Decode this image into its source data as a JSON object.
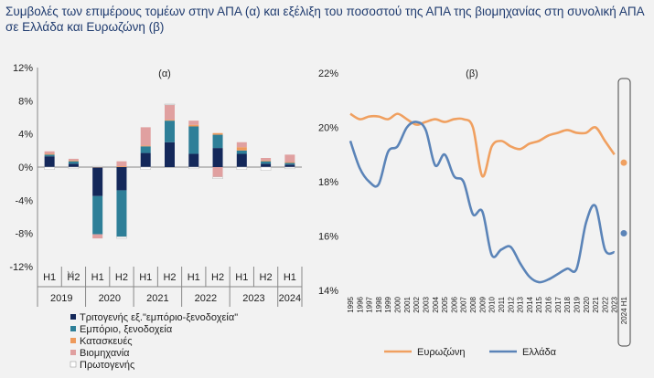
{
  "title": "Συμβολές των επιμέρους τομέων στην ΑΠΑ (α) και εξέλιξη του ποσοστού  της ΑΠΑ της βιομηχανίας στη συνολική ΑΠΑ σε Ελλάδα και Ευρωζώνη  (β)",
  "chart_data": [
    {
      "type": "bar",
      "stacked": true,
      "panel_label": "(α)",
      "categories": [
        "H1",
        "H2",
        "H1",
        "H2",
        "H1",
        "H2",
        "H1",
        "H2",
        "H1",
        "H2",
        "H1"
      ],
      "years": [
        "2019",
        "2020",
        "2021",
        "2022",
        "2023",
        "2024"
      ],
      "yticks": [
        "12%",
        "8%",
        "4%",
        "0%",
        "-4%",
        "-8%",
        "-12%"
      ],
      "ylim": [
        -12,
        12
      ],
      "grid": false,
      "legend_position": "bottom-left",
      "series": [
        {
          "name": "Τριτογενής εξ.\"εμπόριο-ξενοδοχεία\"",
          "color": "#14285a",
          "values": [
            1.3,
            0.4,
            -3.5,
            -2.8,
            1.7,
            3.0,
            1.6,
            2.3,
            1.6,
            0.4,
            0.3
          ]
        },
        {
          "name": "Εμπόριο, ξενοδοχεία",
          "color": "#2e7f98",
          "values": [
            0.2,
            0.3,
            -4.6,
            -5.6,
            0.8,
            2.6,
            3.3,
            1.6,
            0.4,
            0.3,
            0.2
          ]
        },
        {
          "name": "Κατασκευές",
          "color": "#ee9a5c",
          "values": [
            0.1,
            0.1,
            0.0,
            0.1,
            0.1,
            0.1,
            0.2,
            0.2,
            0.4,
            0.1,
            0.1
          ]
        },
        {
          "name": "Βιομηχανία",
          "color": "#e0a0a0",
          "values": [
            0.3,
            0.2,
            -0.5,
            0.6,
            2.2,
            1.8,
            0.5,
            -1.2,
            0.6,
            0.3,
            0.9
          ]
        },
        {
          "name": "Πρωτογενής",
          "color": "#ffffff",
          "values": [
            -0.3,
            -0.2,
            0.1,
            -0.2,
            -0.3,
            0.1,
            -0.2,
            -0.2,
            -0.3,
            -0.4,
            -0.2
          ]
        }
      ]
    },
    {
      "type": "line",
      "panel_label": "(β)",
      "x": [
        "1995",
        "1996",
        "1997",
        "1998",
        "1999",
        "2000",
        "2001",
        "2002",
        "2003",
        "2004",
        "2005",
        "2006",
        "2007",
        "2008",
        "2009",
        "2010",
        "2011",
        "2012",
        "2013",
        "2014",
        "2015",
        "2016",
        "2017",
        "2018",
        "2019",
        "2020",
        "2021",
        "2022",
        "2023",
        "2024 H1"
      ],
      "yticks": [
        "22%",
        "20%",
        "18%",
        "16%",
        "14%"
      ],
      "ylim": [
        14,
        22
      ],
      "grid": false,
      "legend_position": "bottom",
      "series": [
        {
          "name": "Ευρωζώνη",
          "color": "#f0a060",
          "values": [
            20.5,
            20.3,
            20.4,
            20.4,
            20.3,
            20.5,
            20.3,
            20.1,
            20.2,
            20.3,
            20.2,
            20.3,
            20.3,
            20.0,
            18.2,
            19.3,
            19.5,
            19.3,
            19.2,
            19.4,
            19.5,
            19.7,
            19.8,
            19.9,
            19.8,
            19.8,
            20.0,
            19.5,
            19.0,
            18.7
          ]
        },
        {
          "name": "Ελλάδα",
          "color": "#5b84b8",
          "values": [
            19.5,
            18.5,
            18.0,
            17.9,
            19.1,
            19.3,
            20.0,
            20.2,
            19.9,
            18.6,
            19.0,
            18.2,
            18.0,
            16.8,
            16.9,
            15.3,
            15.5,
            15.6,
            15.0,
            14.5,
            14.3,
            14.4,
            14.6,
            14.8,
            14.8,
            16.5,
            17.1,
            15.5,
            15.4,
            16.1
          ]
        }
      ]
    }
  ]
}
